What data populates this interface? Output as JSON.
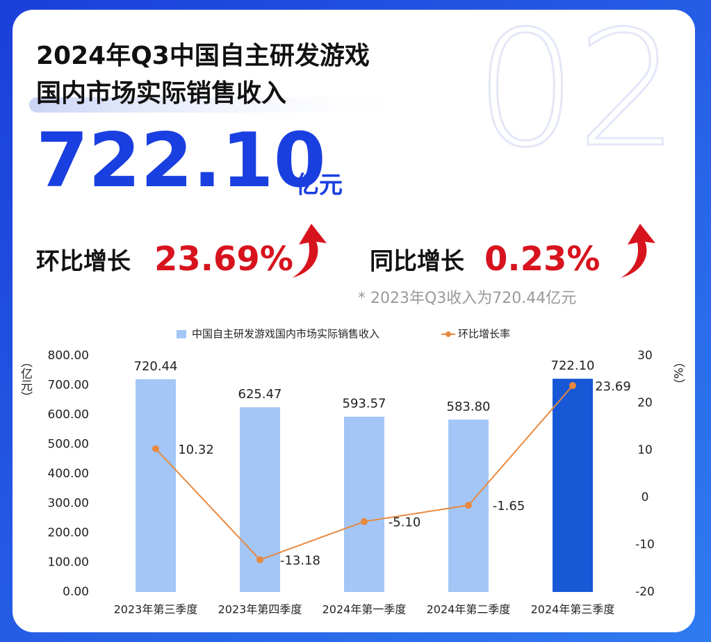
{
  "header": {
    "title_line1": "2024年Q3中国自主研发游戏",
    "title_line2": "国内市场实际销售收入",
    "section_number": "02",
    "headline_value": "722.10",
    "headline_unit": "亿元",
    "qoq_label": "环比增长",
    "qoq_value": "23.69%",
    "yoy_label": "同比增长",
    "yoy_value": "0.23%",
    "footnote": "* 2023年Q3收入为720.44亿元"
  },
  "chart_data": {
    "type": "bar_line",
    "categories": [
      "2023年第三季度",
      "2023年第四季度",
      "2024年第一季度",
      "2024年第二季度",
      "2024年第三季度"
    ],
    "series": [
      {
        "name": "中国自主研发游戏国内市场实际销售收入",
        "type": "bar",
        "color": "#a3c6f6",
        "colors": [
          "#a3c6f6",
          "#a3c6f6",
          "#a3c6f6",
          "#a3c6f6",
          "#1658d6"
        ],
        "values": [
          720.44,
          625.47,
          593.57,
          583.8,
          722.1
        ],
        "value_labels": [
          "720.44",
          "625.47",
          "593.57",
          "583.80",
          "722.10"
        ]
      },
      {
        "name": "环比增长率",
        "type": "line",
        "axis": "y2",
        "color": "#e8883e",
        "values": [
          10.32,
          -13.18,
          -5.1,
          -1.65,
          23.69
        ],
        "value_labels": [
          "10.32",
          "-13.18",
          "-5.10",
          "-1.65",
          "23.69"
        ]
      }
    ],
    "y_label": "（亿元）",
    "y2_label": "（%）",
    "ylim": [
      0,
      800
    ],
    "yticks": [
      {
        "value": 0,
        "label": "0.00"
      },
      {
        "value": 100,
        "label": "100.00"
      },
      {
        "value": 200,
        "label": "200.00"
      },
      {
        "value": 300,
        "label": "300.00"
      },
      {
        "value": 400,
        "label": "400.00"
      },
      {
        "value": 500,
        "label": "500.00"
      },
      {
        "value": 600,
        "label": "600.00"
      },
      {
        "value": 700,
        "label": "700.00"
      },
      {
        "value": 800,
        "label": "800.00"
      }
    ],
    "y2lim": [
      -20,
      30
    ],
    "y2ticks": [
      -20,
      -10,
      0,
      10,
      20,
      30
    ],
    "grid": false,
    "legend": "top"
  }
}
